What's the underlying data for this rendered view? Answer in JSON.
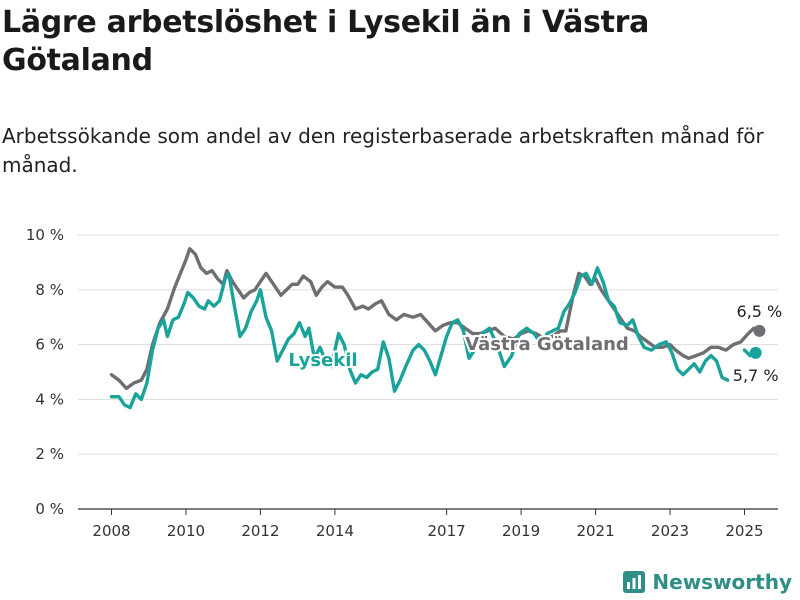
{
  "title": "Lägre arbetslöshet i Lysekil än i Västra Götaland",
  "subtitle": "Arbetssökande som andel av den registerbaserade arbetskraften månad för månad.",
  "brand": "Newsworthy",
  "colors": {
    "lysekil": "#1aa39a",
    "vg": "#6e6e73",
    "grid": "#dddddd",
    "axis": "#333333",
    "brand": "#2f8f86"
  },
  "chart_data": {
    "type": "line",
    "ylim": [
      0,
      10
    ],
    "y_ticks": [
      0,
      2,
      4,
      6,
      8,
      10
    ],
    "y_tick_labels": [
      "0 %",
      "2 %",
      "4 %",
      "6 %",
      "8 %",
      "10 %"
    ],
    "x_ticks": [
      2008,
      2010,
      2012,
      2014,
      2017,
      2019,
      2021,
      2023,
      2025
    ],
    "x_tick_labels": [
      "2008",
      "2010",
      "2012",
      "2014",
      "2017",
      "2019",
      "2021",
      "2023",
      "2025"
    ],
    "xlim": [
      2007.1,
      2025.9
    ],
    "series": [
      {
        "name": "Västra Götaland",
        "end_label": "6,5 %",
        "points": [
          [
            2008.0,
            4.9
          ],
          [
            2008.2,
            4.7
          ],
          [
            2008.4,
            4.4
          ],
          [
            2008.6,
            4.6
          ],
          [
            2008.8,
            4.7
          ],
          [
            2008.95,
            5.1
          ],
          [
            2009.1,
            6.0
          ],
          [
            2009.3,
            6.8
          ],
          [
            2009.5,
            7.3
          ],
          [
            2009.7,
            8.1
          ],
          [
            2009.85,
            8.6
          ],
          [
            2010.0,
            9.1
          ],
          [
            2010.1,
            9.5
          ],
          [
            2010.25,
            9.3
          ],
          [
            2010.4,
            8.8
          ],
          [
            2010.55,
            8.6
          ],
          [
            2010.7,
            8.7
          ],
          [
            2010.85,
            8.4
          ],
          [
            2011.0,
            8.2
          ],
          [
            2011.1,
            8.7
          ],
          [
            2011.25,
            8.3
          ],
          [
            2011.4,
            8.0
          ],
          [
            2011.55,
            7.7
          ],
          [
            2011.7,
            7.9
          ],
          [
            2011.85,
            8.0
          ],
          [
            2012.0,
            8.3
          ],
          [
            2012.15,
            8.6
          ],
          [
            2012.35,
            8.2
          ],
          [
            2012.55,
            7.8
          ],
          [
            2012.7,
            8.0
          ],
          [
            2012.85,
            8.2
          ],
          [
            2013.0,
            8.2
          ],
          [
            2013.15,
            8.5
          ],
          [
            2013.35,
            8.3
          ],
          [
            2013.5,
            7.8
          ],
          [
            2013.65,
            8.1
          ],
          [
            2013.8,
            8.3
          ],
          [
            2014.0,
            8.1
          ],
          [
            2014.2,
            8.1
          ],
          [
            2014.35,
            7.8
          ],
          [
            2014.55,
            7.3
          ],
          [
            2014.75,
            7.4
          ],
          [
            2014.9,
            7.3
          ],
          [
            2015.1,
            7.5
          ],
          [
            2015.25,
            7.6
          ],
          [
            2015.45,
            7.1
          ],
          [
            2015.65,
            6.9
          ],
          [
            2015.85,
            7.1
          ],
          [
            2016.1,
            7.0
          ],
          [
            2016.3,
            7.1
          ],
          [
            2016.5,
            6.8
          ],
          [
            2016.7,
            6.5
          ],
          [
            2016.9,
            6.7
          ],
          [
            2017.1,
            6.8
          ],
          [
            2017.3,
            6.8
          ],
          [
            2017.5,
            6.6
          ],
          [
            2017.7,
            6.4
          ],
          [
            2017.9,
            6.4
          ],
          [
            2018.1,
            6.5
          ],
          [
            2018.3,
            6.6
          ],
          [
            2018.55,
            6.3
          ],
          [
            2018.8,
            6.2
          ],
          [
            2019.0,
            6.4
          ],
          [
            2019.2,
            6.5
          ],
          [
            2019.4,
            6.4
          ],
          [
            2019.65,
            6.2
          ],
          [
            2019.85,
            6.3
          ],
          [
            2020.05,
            6.5
          ],
          [
            2020.2,
            6.5
          ],
          [
            2020.4,
            7.8
          ],
          [
            2020.55,
            8.6
          ],
          [
            2020.7,
            8.5
          ],
          [
            2020.85,
            8.2
          ],
          [
            2021.0,
            8.4
          ],
          [
            2021.15,
            8.0
          ],
          [
            2021.35,
            7.6
          ],
          [
            2021.55,
            7.2
          ],
          [
            2021.7,
            6.9
          ],
          [
            2021.85,
            6.6
          ],
          [
            2022.05,
            6.5
          ],
          [
            2022.2,
            6.3
          ],
          [
            2022.4,
            6.1
          ],
          [
            2022.6,
            5.9
          ],
          [
            2022.8,
            5.9
          ],
          [
            2023.0,
            6.0
          ],
          [
            2023.15,
            5.8
          ],
          [
            2023.35,
            5.6
          ],
          [
            2023.5,
            5.5
          ],
          [
            2023.7,
            5.6
          ],
          [
            2023.9,
            5.7
          ],
          [
            2024.1,
            5.9
          ],
          [
            2024.3,
            5.9
          ],
          [
            2024.5,
            5.8
          ],
          [
            2024.7,
            6.0
          ],
          [
            2024.9,
            6.1
          ],
          [
            2025.1,
            6.4
          ],
          [
            2025.25,
            6.6
          ],
          [
            2025.4,
            6.5
          ]
        ]
      },
      {
        "name": "Lysekil",
        "end_label": "5,7 %",
        "points": [
          [
            2008.0,
            4.1
          ],
          [
            2008.2,
            4.1
          ],
          [
            2008.35,
            3.8
          ],
          [
            2008.5,
            3.7
          ],
          [
            2008.65,
            4.2
          ],
          [
            2008.8,
            4.0
          ],
          [
            2008.95,
            4.6
          ],
          [
            2009.1,
            5.8
          ],
          [
            2009.25,
            6.6
          ],
          [
            2009.4,
            6.9
          ],
          [
            2009.5,
            6.3
          ],
          [
            2009.65,
            6.9
          ],
          [
            2009.8,
            7.0
          ],
          [
            2009.95,
            7.5
          ],
          [
            2010.05,
            7.9
          ],
          [
            2010.2,
            7.7
          ],
          [
            2010.35,
            7.4
          ],
          [
            2010.5,
            7.3
          ],
          [
            2010.6,
            7.6
          ],
          [
            2010.75,
            7.4
          ],
          [
            2010.9,
            7.6
          ],
          [
            2011.05,
            8.4
          ],
          [
            2011.15,
            8.6
          ],
          [
            2011.3,
            7.4
          ],
          [
            2011.45,
            6.3
          ],
          [
            2011.6,
            6.6
          ],
          [
            2011.75,
            7.2
          ],
          [
            2011.9,
            7.6
          ],
          [
            2012.0,
            8.0
          ],
          [
            2012.15,
            7.0
          ],
          [
            2012.3,
            6.5
          ],
          [
            2012.45,
            5.4
          ],
          [
            2012.6,
            5.8
          ],
          [
            2012.75,
            6.2
          ],
          [
            2012.9,
            6.4
          ],
          [
            2013.05,
            6.8
          ],
          [
            2013.2,
            6.3
          ],
          [
            2013.3,
            6.6
          ],
          [
            2013.45,
            5.5
          ],
          [
            2013.6,
            5.9
          ],
          [
            2013.75,
            5.4
          ],
          [
            2013.9,
            5.2
          ],
          [
            2014.0,
            5.8
          ],
          [
            2014.1,
            6.4
          ],
          [
            2014.25,
            6.0
          ],
          [
            2014.4,
            5.1
          ],
          [
            2014.55,
            4.6
          ],
          [
            2014.7,
            4.9
          ],
          [
            2014.85,
            4.8
          ],
          [
            2015.0,
            5.0
          ],
          [
            2015.15,
            5.1
          ],
          [
            2015.3,
            6.1
          ],
          [
            2015.45,
            5.5
          ],
          [
            2015.6,
            4.3
          ],
          [
            2015.75,
            4.7
          ],
          [
            2015.9,
            5.2
          ],
          [
            2016.1,
            5.8
          ],
          [
            2016.25,
            6.0
          ],
          [
            2016.4,
            5.8
          ],
          [
            2016.55,
            5.4
          ],
          [
            2016.7,
            4.9
          ],
          [
            2016.85,
            5.6
          ],
          [
            2017.0,
            6.3
          ],
          [
            2017.15,
            6.8
          ],
          [
            2017.3,
            6.9
          ],
          [
            2017.45,
            6.5
          ],
          [
            2017.6,
            5.5
          ],
          [
            2017.75,
            5.8
          ],
          [
            2017.95,
            6.4
          ],
          [
            2018.15,
            6.6
          ],
          [
            2018.35,
            6.0
          ],
          [
            2018.55,
            5.2
          ],
          [
            2018.75,
            5.6
          ],
          [
            2018.95,
            6.4
          ],
          [
            2019.15,
            6.6
          ],
          [
            2019.35,
            6.4
          ],
          [
            2019.55,
            6.0
          ],
          [
            2019.7,
            6.4
          ],
          [
            2019.85,
            6.5
          ],
          [
            2020.0,
            6.6
          ],
          [
            2020.15,
            7.2
          ],
          [
            2020.3,
            7.5
          ],
          [
            2020.45,
            7.9
          ],
          [
            2020.6,
            8.5
          ],
          [
            2020.75,
            8.6
          ],
          [
            2020.9,
            8.2
          ],
          [
            2021.05,
            8.8
          ],
          [
            2021.2,
            8.3
          ],
          [
            2021.35,
            7.6
          ],
          [
            2021.5,
            7.4
          ],
          [
            2021.65,
            6.8
          ],
          [
            2021.85,
            6.7
          ],
          [
            2022.0,
            6.9
          ],
          [
            2022.15,
            6.3
          ],
          [
            2022.3,
            5.9
          ],
          [
            2022.5,
            5.8
          ],
          [
            2022.7,
            6.0
          ],
          [
            2022.9,
            6.1
          ],
          [
            2023.05,
            5.7
          ],
          [
            2023.2,
            5.1
          ],
          [
            2023.35,
            4.9
          ],
          [
            2023.5,
            5.1
          ],
          [
            2023.65,
            5.3
          ],
          [
            2023.8,
            5.0
          ],
          [
            2023.95,
            5.4
          ],
          [
            2024.1,
            5.6
          ],
          [
            2024.25,
            5.4
          ],
          [
            2024.4,
            4.8
          ],
          [
            2024.55,
            4.7
          ],
          [
            2025.0,
            5.8
          ],
          [
            2025.15,
            5.6
          ],
          [
            2025.3,
            5.7
          ]
        ]
      }
    ]
  }
}
